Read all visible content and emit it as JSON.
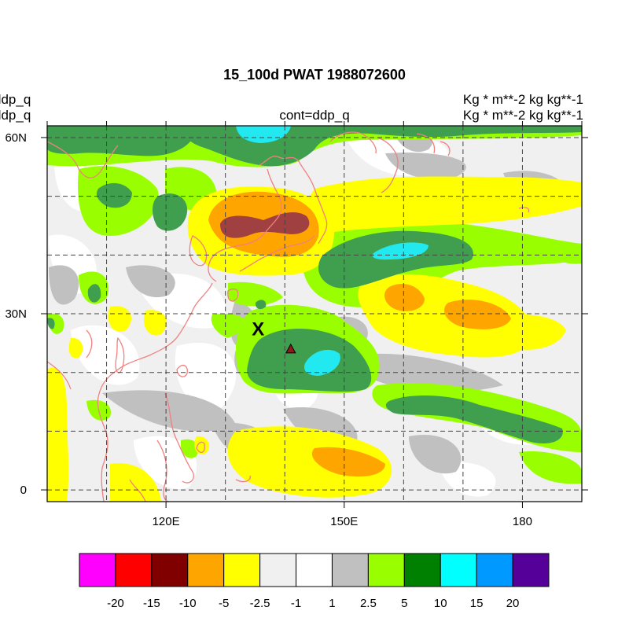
{
  "figure": {
    "title": "15_100d PWAT  1988072600",
    "left_line1": "ddp_q",
    "left_line2": "ddp_q",
    "center_label": "cont=ddp_q",
    "units_line1": "Kg  * m**-2 kg kg**-1",
    "units_line2": "Kg  * m**-2 kg kg**-1"
  },
  "map": {
    "lon_range": [
      100,
      190
    ],
    "lat_range": [
      -2,
      62
    ],
    "lon_ticks": [
      {
        "value": 120,
        "label": "120E"
      },
      {
        "value": 150,
        "label": "150E"
      },
      {
        "value": 180,
        "label": "180"
      }
    ],
    "lat_ticks": [
      {
        "value": 0,
        "label": "0"
      },
      {
        "value": 30,
        "label": "30N"
      },
      {
        "value": 60,
        "label": "60N"
      }
    ],
    "grid_lons": [
      100,
      110,
      120,
      130,
      140,
      150,
      160,
      170,
      180,
      190
    ],
    "grid_lats": [
      0,
      10,
      20,
      30,
      40,
      50,
      60
    ],
    "grid": "dashed",
    "markers": [
      {
        "label": "X",
        "lon": 135.5,
        "lat": 27.5
      },
      {
        "label": "triangle",
        "lon": 141,
        "lat": 24,
        "color": "#8b1a1a"
      }
    ],
    "coastline_color": "#f08080"
  },
  "colorbar": {
    "colors": [
      "#ff00ff",
      "#ff0000",
      "#800000",
      "#ffa500",
      "#ffff00",
      "#f0f0f0",
      "#ffffff",
      "#c0c0c0",
      "#99ff00",
      "#008000",
      "#00ffff",
      "#0099ff",
      "#550099"
    ],
    "labels": [
      "-20",
      "-15",
      "-10",
      "-5",
      "-2.5",
      "-1",
      "1",
      "2.5",
      "5",
      "10",
      "15",
      "20"
    ]
  }
}
